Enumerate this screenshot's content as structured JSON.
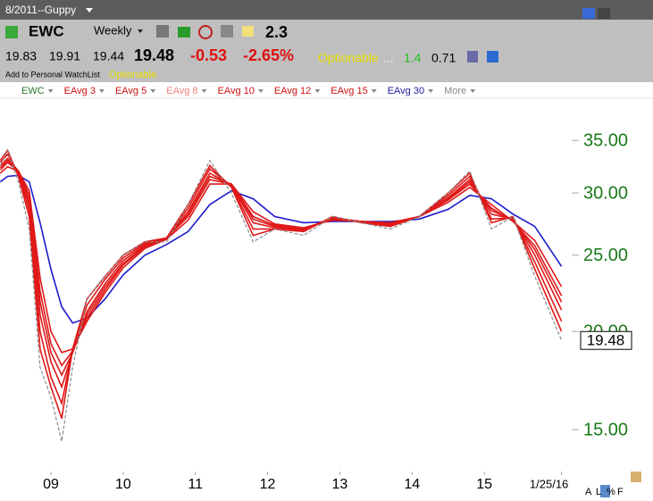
{
  "header": {
    "title": "8/2011--Guppy",
    "symbol": "EWC",
    "period": "Weekly",
    "rank": "2.3",
    "open": "19.83",
    "high": "19.91",
    "low": "19.44",
    "last": "19.48",
    "change": "-0.53",
    "change_pct": "-2.65%",
    "optionable": "Optionable",
    "ellipsis": "...",
    "stat1": "1.4",
    "stat2": "0.71",
    "watchlist": "Add to Personal WatchList",
    "optionable2": "Optionable"
  },
  "legend_more": "More",
  "footer": [
    "A",
    "L",
    "%",
    "F"
  ],
  "chart_data": {
    "type": "line",
    "log_scale": true,
    "x": [
      2008.3,
      2008.4,
      2008.55,
      2008.7,
      2008.85,
      2009.0,
      2009.15,
      2009.3,
      2009.5,
      2009.75,
      2010.0,
      2010.3,
      2010.6,
      2010.9,
      2011.2,
      2011.5,
      2011.8,
      2012.1,
      2012.5,
      2012.9,
      2013.3,
      2013.7,
      2014.1,
      2014.5,
      2014.8,
      2015.1,
      2015.4,
      2015.7,
      2016.07
    ],
    "xlim": [
      2008.295,
      2016.31
    ],
    "xticks": [
      {
        "value": 2009,
        "label": "09"
      },
      {
        "value": 2010,
        "label": "10"
      },
      {
        "value": 2011,
        "label": "11"
      },
      {
        "value": 2012,
        "label": "12"
      },
      {
        "value": 2013,
        "label": "13"
      },
      {
        "value": 2014,
        "label": "14"
      },
      {
        "value": 2015,
        "label": "15"
      },
      {
        "value": 2016.07,
        "label": "1/25/16"
      }
    ],
    "ylim": [
      13.2,
      39.6
    ],
    "yticks": [
      {
        "value": 15,
        "label": "15.00"
      },
      {
        "value": 20,
        "label": "20.00"
      },
      {
        "value": 25,
        "label": "25.00"
      },
      {
        "value": 30,
        "label": "30.00"
      },
      {
        "value": 35,
        "label": "35.00"
      }
    ],
    "series": [
      {
        "name": "EWC",
        "color": "#8c8c8c",
        "legend_color": "#2a7a2a",
        "values": [
          32.5,
          34,
          31,
          27,
          18,
          16.5,
          14.5,
          18,
          22,
          23.5,
          25,
          26,
          26,
          29,
          33,
          30,
          26,
          27,
          26.5,
          28,
          27.5,
          27,
          28,
          30,
          32,
          27,
          28,
          23.5,
          19.48
        ]
      },
      {
        "name": "EAvg 3",
        "color": "#e01818",
        "legend_color": "#d01010",
        "values": [
          33,
          34,
          31.5,
          28,
          19,
          17,
          15.5,
          19,
          22,
          23.5,
          25,
          26,
          26.3,
          29,
          32.5,
          30.5,
          26.5,
          27,
          26.8,
          28,
          27.5,
          27.2,
          28,
          30,
          31.8,
          27.5,
          28,
          24,
          20
        ]
      },
      {
        "name": "EAvg 5",
        "color": "#e01818",
        "legend_color": "#d01010",
        "values": [
          32.8,
          33.6,
          31.8,
          28.5,
          20,
          17.5,
          16.2,
          19,
          21.6,
          23.3,
          24.8,
          25.9,
          26.3,
          28.7,
          32.2,
          30.6,
          27,
          27,
          26.9,
          27.9,
          27.6,
          27.3,
          28,
          29.8,
          31.5,
          27.8,
          27.9,
          24.5,
          20.6
        ]
      },
      {
        "name": "EAvg 8",
        "color": "#e01818",
        "legend_color": "#f08080",
        "values": [
          32.5,
          33.2,
          32,
          29,
          21,
          18.3,
          17,
          18.8,
          21.2,
          23,
          24.6,
          25.8,
          26.3,
          28.4,
          31.8,
          30.7,
          27.5,
          27.1,
          27,
          27.9,
          27.6,
          27.4,
          28,
          29.6,
          31.2,
          28.2,
          27.8,
          25,
          21.3
        ]
      },
      {
        "name": "EAvg 10",
        "color": "#e01818",
        "legend_color": "#d01010",
        "values": [
          32.3,
          33,
          32,
          29.4,
          21.8,
          18.8,
          17.6,
          18.8,
          21,
          22.8,
          24.4,
          25.7,
          26.3,
          28.2,
          31.5,
          30.8,
          27.8,
          27.2,
          27,
          27.8,
          27.6,
          27.4,
          28,
          29.5,
          31,
          28.5,
          27.7,
          25.4,
          21.8
        ]
      },
      {
        "name": "EAvg 12",
        "color": "#e01818",
        "legend_color": "#d01010",
        "values": [
          32.1,
          32.8,
          32,
          29.8,
          22.5,
          19.3,
          18.1,
          18.9,
          20.8,
          22.6,
          24.3,
          25.6,
          26.3,
          28,
          31.2,
          30.8,
          28,
          27.3,
          27,
          27.8,
          27.6,
          27.5,
          28,
          29.4,
          30.8,
          28.7,
          27.6,
          25.7,
          22.2
        ]
      },
      {
        "name": "EAvg 15",
        "color": "#e01818",
        "legend_color": "#d01010",
        "values": [
          31.8,
          32.4,
          32,
          30.2,
          23.4,
          20,
          18.8,
          19,
          20.6,
          22.4,
          24.1,
          25.5,
          26.2,
          27.7,
          30.8,
          30.8,
          28.4,
          27.4,
          27.1,
          27.7,
          27.6,
          27.5,
          28,
          29.2,
          30.5,
          29,
          27.6,
          26.1,
          22.8
        ]
      },
      {
        "name": "EAvg 30",
        "color": "#1a1acc",
        "legend_color": "#1a1a9a",
        "values": [
          31,
          31.5,
          31.6,
          31,
          27.5,
          24,
          21.5,
          20.5,
          20.8,
          22,
          23.6,
          25,
          25.8,
          26.8,
          29,
          30.2,
          29.5,
          28,
          27.5,
          27.6,
          27.6,
          27.6,
          27.8,
          28.6,
          29.8,
          29.5,
          28.2,
          27.2,
          24.2
        ]
      }
    ]
  }
}
